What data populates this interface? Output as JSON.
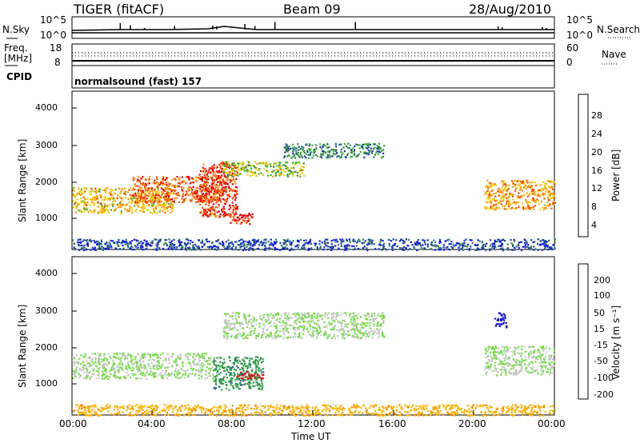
{
  "header": {
    "station": "TIGER (fitACF)",
    "beam": "Beam 09",
    "date": "28/Aug/2010"
  },
  "noise_panel": {
    "left_label": "N.Sky",
    "right_label": "N.Search",
    "left_ticks": [
      "10^5",
      "10^0"
    ],
    "right_ticks": [
      "10^5",
      "10^0"
    ],
    "spike_hours": [
      2.4,
      2.9,
      3.6,
      5.1,
      5.9,
      7.0,
      7.2,
      7.9,
      8.6,
      9.1,
      10.1,
      14.1,
      21.2,
      21.4,
      23.4,
      23.6
    ]
  },
  "freq_panel": {
    "left_label_1": "Freq.",
    "left_label_2": "[MHz]",
    "right_label": "Nave",
    "left_ticks": [
      "18",
      "8"
    ],
    "right_ticks": [
      "60",
      "0"
    ]
  },
  "cpid_panel": {
    "label": "CPID",
    "text": "normalsound (fast) 157"
  },
  "power_panel": {
    "ylabel": "Slant Range [km]",
    "yticks": [
      "4000",
      "3000",
      "2000",
      "1000"
    ],
    "colorbar_label": "Power [dB]",
    "colorbar_ticks": [
      "28",
      "24",
      "20",
      "16",
      "12",
      "8",
      "4"
    ],
    "colors": [
      "#1010ff",
      "#1a3fa8",
      "#2e7d5a",
      "#3cb030",
      "#f2d000",
      "#ff9a00",
      "#ff5000",
      "#e80000"
    ]
  },
  "velocity_panel": {
    "ylabel": "Slant Range [km]",
    "yticks": [
      "4000",
      "3000",
      "2000",
      "1000"
    ],
    "colorbar_label": "Velocity [m s⁻¹]",
    "colorbar_ticks": [
      "200",
      "100",
      "50",
      "15",
      "-15",
      "-50",
      "-100",
      "-200"
    ],
    "colors": [
      "#1010d0",
      "#2c5aa8",
      "#2f9a4a",
      "#6ee03a",
      "#c8c8c8",
      "#ffb400",
      "#ff7a00",
      "#e81010"
    ]
  },
  "x_axis": {
    "ticks": [
      "00:00",
      "04:00",
      "08:00",
      "12:00",
      "16:00",
      "20:00",
      "00:00"
    ],
    "label": "Time UT"
  },
  "chart_data": [
    {
      "type": "heatmap",
      "title": "TIGER (fitACF) Beam 09 28/Aug/2010",
      "quantity": "Power [dB]",
      "xlabel": "Time UT",
      "ylabel": "Slant Range [km]",
      "xlim_hours": [
        0,
        24
      ],
      "ylim_km": [
        200,
        4500
      ],
      "clim": [
        0,
        32
      ],
      "regions": [
        {
          "t0": 0.0,
          "t1": 5.0,
          "r0": 1200,
          "r1": 1900,
          "value": 20
        },
        {
          "t0": 3.0,
          "t1": 7.5,
          "r0": 1500,
          "r1": 2200,
          "value": 26
        },
        {
          "t0": 6.3,
          "t1": 8.2,
          "r0": 1100,
          "r1": 2600,
          "value": 28
        },
        {
          "t0": 7.8,
          "t1": 9.0,
          "r0": 900,
          "r1": 1200,
          "value": 30
        },
        {
          "t0": 7.5,
          "t1": 11.5,
          "r0": 2200,
          "r1": 2600,
          "value": 16
        },
        {
          "t0": 10.5,
          "t1": 15.5,
          "r0": 2700,
          "r1": 3100,
          "value": 10
        },
        {
          "t0": 20.5,
          "t1": 24.0,
          "r0": 1300,
          "r1": 2100,
          "value": 22
        },
        {
          "t0": 0.0,
          "t1": 24.0,
          "r0": 200,
          "r1": 500,
          "value": 6
        }
      ]
    },
    {
      "type": "heatmap",
      "quantity": "Velocity [m s⁻¹]",
      "xlabel": "Time UT",
      "ylabel": "Slant Range [km]",
      "xlim_hours": [
        0,
        24
      ],
      "ylim_km": [
        200,
        4500
      ],
      "clim": [
        -200,
        200
      ],
      "regions": [
        {
          "t0": 0.0,
          "t1": 7.0,
          "r0": 1200,
          "r1": 1900,
          "value": 0
        },
        {
          "t0": 7.0,
          "t1": 9.5,
          "r0": 900,
          "r1": 1800,
          "value": 60
        },
        {
          "t0": 8.2,
          "t1": 9.5,
          "r0": 1200,
          "r1": 1400,
          "value": -180
        },
        {
          "t0": 7.5,
          "t1": 15.5,
          "r0": 2300,
          "r1": 3000,
          "value": 0
        },
        {
          "t0": 20.5,
          "t1": 24.0,
          "r0": 1300,
          "r1": 2100,
          "value": 0
        },
        {
          "t0": 21.0,
          "t1": 21.6,
          "r0": 2600,
          "r1": 3000,
          "value": 200
        },
        {
          "t0": 0.0,
          "t1": 24.0,
          "r0": 200,
          "r1": 500,
          "value": -60
        }
      ]
    }
  ]
}
